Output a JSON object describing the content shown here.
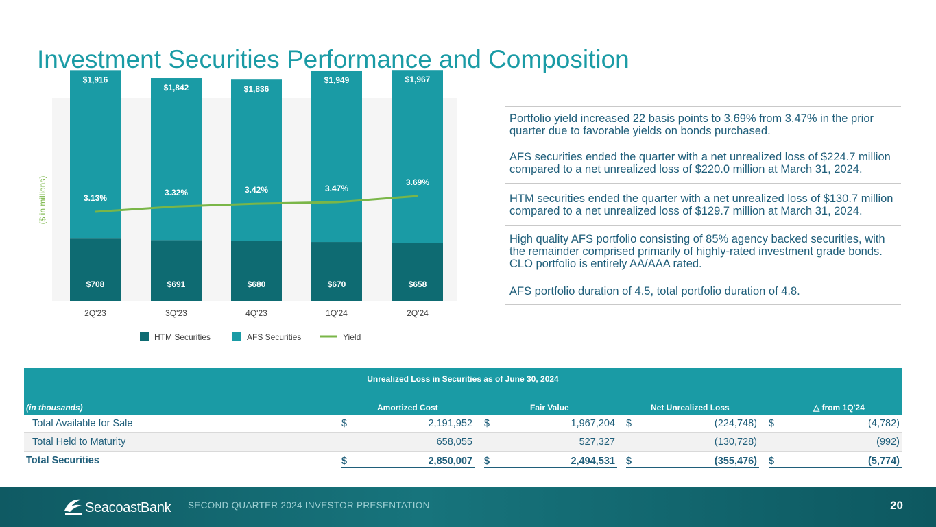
{
  "title": "Investment Securities Performance and Composition",
  "chart_data": {
    "type": "bar",
    "stacked": true,
    "categories": [
      "2Q'23",
      "3Q'23",
      "4Q'23",
      "1Q'24",
      "2Q'24"
    ],
    "series": [
      {
        "name": "HTM Securities",
        "values": [
          708,
          691,
          680,
          670,
          658
        ],
        "labels": [
          "$708",
          "$691",
          "$680",
          "$670",
          "$658"
        ],
        "color": "#0e6b72"
      },
      {
        "name": "AFS Securities",
        "values": [
          1916,
          1842,
          1836,
          1949,
          1967
        ],
        "labels": [
          "$1,916",
          "$1,842",
          "$1,836",
          "$1,949",
          "$1,967"
        ],
        "color": "#1a9ba5"
      }
    ],
    "line": {
      "name": "Yield",
      "values": [
        3.13,
        3.32,
        3.42,
        3.47,
        3.69
      ],
      "labels": [
        "3.13%",
        "3.32%",
        "3.42%",
        "3.47%",
        "3.69%"
      ],
      "color": "#7ab648"
    },
    "ylabel": "($ in millions)",
    "legend": [
      "HTM Securities",
      "AFS Securities",
      "Yield"
    ],
    "legend_position": "bottom"
  },
  "bullets": [
    "Portfolio yield increased 22 basis points to 3.69% from 3.47% in the prior quarter due to favorable yields on bonds purchased.",
    "AFS securities ended the quarter with a net unrealized loss of $224.7 million compared to a net unrealized loss of $220.0 million at March 31, 2024.",
    "HTM securities ended the quarter with a net unrealized loss of $130.7 million compared to a net unrealized loss of $129.7 million at March 31, 2024.",
    "High quality AFS portfolio consisting of 85% agency backed securities, with the remainder comprised primarily of highly-rated investment grade bonds. CLO portfolio is entirely AA/AAA rated.",
    "AFS portfolio duration of 4.5, total portfolio duration of 4.8."
  ],
  "table": {
    "title": "Unrealized Loss in Securities as of June 30, 2024",
    "units": "(in thousands)",
    "columns": [
      "Amortized Cost",
      "Fair Value",
      "Net Unrealized Loss",
      "△ from 1Q'24"
    ],
    "rows": [
      {
        "label": "Total Available for Sale",
        "cells": [
          {
            "sym": "$",
            "val": "2,191,952"
          },
          {
            "sym": "$",
            "val": "1,967,204"
          },
          {
            "sym": "$",
            "val": "(224,748)"
          },
          {
            "sym": "$",
            "val": "(4,782)"
          }
        ]
      },
      {
        "label": "Total Held to Maturity",
        "cells": [
          {
            "sym": "",
            "val": "658,055"
          },
          {
            "sym": "",
            "val": "527,327"
          },
          {
            "sym": "",
            "val": "(130,728)"
          },
          {
            "sym": "",
            "val": "(992)"
          }
        ]
      },
      {
        "label": "Total Securities",
        "cells": [
          {
            "sym": "$",
            "val": "2,850,007"
          },
          {
            "sym": "$",
            "val": "2,494,531"
          },
          {
            "sym": "$",
            "val": "(355,476)"
          },
          {
            "sym": "$",
            "val": "(5,774)"
          }
        ]
      }
    ]
  },
  "footer": {
    "brand": "SeacoastBank",
    "presentation": "SECOND QUARTER 2024 INVESTOR PRESENTATION",
    "page_number": "20"
  },
  "colors": {
    "accent": "#1a9ba5",
    "dark": "#0e6b72",
    "lime": "#c8d63c",
    "text": "#1f5e7a"
  }
}
